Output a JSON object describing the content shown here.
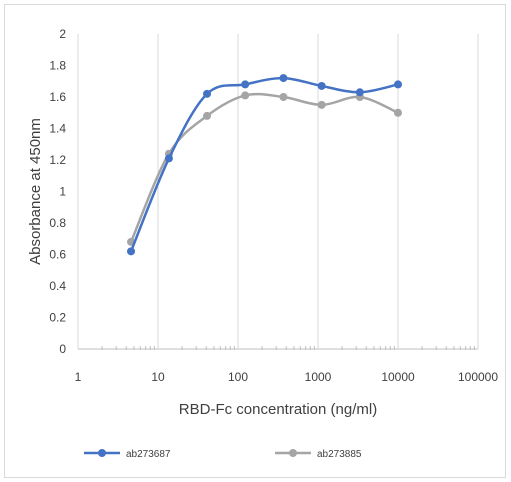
{
  "chart_data": {
    "type": "line",
    "title": "",
    "xlabel": "RBD-Fc concentration (ng/ml)",
    "ylabel": "Absorbance at 450nm",
    "xscale": "log",
    "xlim": [
      1,
      100000
    ],
    "ylim": [
      0,
      2
    ],
    "xticks": [
      1,
      10,
      100,
      1000,
      10000,
      100000
    ],
    "xtick_labels": [
      "1",
      "10",
      "100",
      "1000",
      "10000",
      "100000"
    ],
    "yticks": [
      0,
      0.2,
      0.4,
      0.6,
      0.8,
      1,
      1.2,
      1.4,
      1.6,
      1.8,
      2
    ],
    "ytick_labels": [
      "0",
      "0.2",
      "0.4",
      "0.6",
      "0.8",
      "1",
      "1.2",
      "1.4",
      "1.6",
      "1.8",
      "2"
    ],
    "grid": "vertical-major",
    "smooth": true,
    "legend_position": "bottom",
    "series": [
      {
        "name": "ab273687",
        "color": "#4472c4",
        "x": [
          4.6,
          13.7,
          41,
          123,
          370,
          1111,
          3333,
          10000
        ],
        "y": [
          0.62,
          1.21,
          1.62,
          1.68,
          1.72,
          1.67,
          1.63,
          1.68
        ]
      },
      {
        "name": "ab273885",
        "color": "#a5a5a5",
        "x": [
          4.6,
          13.7,
          41,
          123,
          370,
          1111,
          3333,
          10000
        ],
        "y": [
          0.68,
          1.24,
          1.48,
          1.61,
          1.6,
          1.55,
          1.6,
          1.5
        ]
      }
    ]
  }
}
